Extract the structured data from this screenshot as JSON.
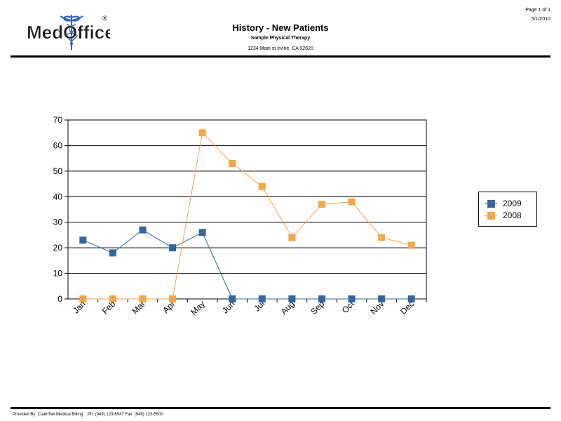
{
  "header": {
    "logo_text": "MedOffice",
    "logo_mark": "®",
    "title": "History - New Patients",
    "subtitle": "Sample Physical Therapy",
    "address": "1234 Main st Irvine, CA 92620",
    "page": "Page 1 of 1",
    "date": "5/1/2010"
  },
  "footer": {
    "text": "Provided By: ClaimTek Medical Billing    Ph: (949) 123-6547 Fax: (949) 123-5500"
  },
  "chart_data": {
    "type": "line",
    "categories": [
      "Jan",
      "Feb",
      "Mar",
      "Apr",
      "May",
      "Jun",
      "Jul",
      "Aug",
      "Sep",
      "Oct",
      "Nov",
      "Dec"
    ],
    "series": [
      {
        "name": "2009",
        "color": "#336699",
        "values": [
          23,
          18,
          27,
          20,
          26,
          0,
          0,
          0,
          0,
          0,
          0,
          0
        ]
      },
      {
        "name": "2008",
        "color": "#f2a54a",
        "values": [
          0,
          0,
          0,
          0,
          65,
          53,
          44,
          24,
          37,
          38,
          24,
          21
        ]
      }
    ],
    "ylim": [
      0,
      70
    ],
    "yticks": [
      0,
      10,
      20,
      30,
      40,
      50,
      60,
      70
    ],
    "grid": true,
    "legend_position": "right"
  }
}
